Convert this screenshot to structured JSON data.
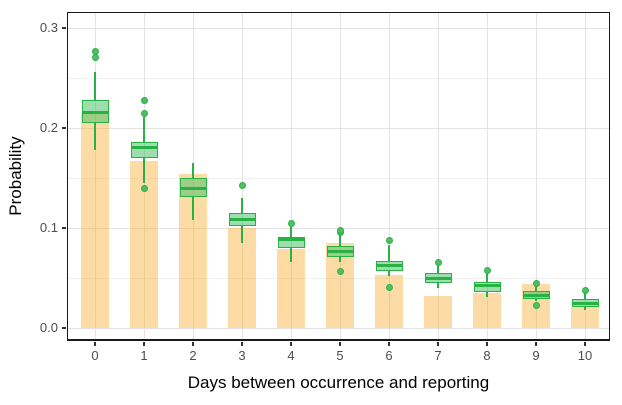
{
  "chart_data": {
    "type": "bar+boxplot",
    "title": "",
    "xlabel": "Days between occurrence and reporting",
    "ylabel": "Probability",
    "categories": [
      "0",
      "1",
      "2",
      "3",
      "4",
      "5",
      "6",
      "7",
      "8",
      "9",
      "10"
    ],
    "y_ticks": [
      {
        "v": 0.0,
        "label": "0.0"
      },
      {
        "v": 0.1,
        "label": "0.1"
      },
      {
        "v": 0.2,
        "label": "0.2"
      },
      {
        "v": 0.3,
        "label": "0.3"
      }
    ],
    "y_minor_gridlines": [
      0.05,
      0.15,
      0.25
    ],
    "ylim": [
      -0.013,
      0.316
    ],
    "grid": "on",
    "legend": "none",
    "bar_series": {
      "name": "bar-probability",
      "values": [
        0.215,
        0.167,
        0.154,
        0.1,
        0.079,
        0.085,
        0.053,
        0.032,
        0.035,
        0.044,
        0.021
      ]
    },
    "box_series": [
      {
        "x": "0",
        "whisker_low": 0.178,
        "q1": 0.205,
        "median": 0.216,
        "q3": 0.228,
        "whisker_high": 0.256,
        "outliers_high": [
          0.271,
          0.277
        ],
        "outliers_low": []
      },
      {
        "x": "1",
        "whisker_low": 0.145,
        "q1": 0.17,
        "median": 0.181,
        "q3": 0.186,
        "whisker_high": 0.211,
        "outliers_high": [
          0.215,
          0.228
        ],
        "outliers_low": [
          0.14
        ]
      },
      {
        "x": "2",
        "whisker_low": 0.108,
        "q1": 0.131,
        "median": 0.14,
        "q3": 0.15,
        "whisker_high": 0.165,
        "outliers_high": [],
        "outliers_low": []
      },
      {
        "x": "3",
        "whisker_low": 0.085,
        "q1": 0.102,
        "median": 0.109,
        "q3": 0.115,
        "whisker_high": 0.13,
        "outliers_high": [
          0.143
        ],
        "outliers_low": []
      },
      {
        "x": "4",
        "whisker_low": 0.066,
        "q1": 0.08,
        "median": 0.089,
        "q3": 0.091,
        "whisker_high": 0.101,
        "outliers_high": [
          0.105
        ],
        "outliers_low": []
      },
      {
        "x": "5",
        "whisker_low": 0.066,
        "q1": 0.071,
        "median": 0.077,
        "q3": 0.082,
        "whisker_high": 0.093,
        "outliers_high": [
          0.096,
          0.098
        ],
        "outliers_low": [
          0.057
        ]
      },
      {
        "x": "6",
        "whisker_low": 0.052,
        "q1": 0.057,
        "median": 0.063,
        "q3": 0.067,
        "whisker_high": 0.083,
        "outliers_high": [
          0.088
        ],
        "outliers_low": [
          0.041
        ]
      },
      {
        "x": "7",
        "whisker_low": 0.04,
        "q1": 0.045,
        "median": 0.05,
        "q3": 0.055,
        "whisker_high": 0.064,
        "outliers_high": [
          0.066
        ],
        "outliers_low": []
      },
      {
        "x": "8",
        "whisker_low": 0.031,
        "q1": 0.036,
        "median": 0.043,
        "q3": 0.046,
        "whisker_high": 0.055,
        "outliers_high": [
          0.058
        ],
        "outliers_low": []
      },
      {
        "x": "9",
        "whisker_low": 0.027,
        "q1": 0.029,
        "median": 0.033,
        "q3": 0.037,
        "whisker_high": 0.043,
        "outliers_high": [
          0.045
        ],
        "outliers_low": [
          0.023
        ]
      },
      {
        "x": "10",
        "whisker_low": 0.018,
        "q1": 0.021,
        "median": 0.025,
        "q3": 0.029,
        "whisker_high": 0.035,
        "outliers_high": [
          0.038
        ],
        "outliers_low": []
      }
    ],
    "colors": {
      "bar_fill": "rgba(250, 172, 48, 0.44)",
      "box_stroke": "#28B246",
      "box_fill": "rgba(77, 194, 108, 0.55)",
      "outlier_fill": "#53BD64",
      "grid_major": "#E3E3E3",
      "grid_minor": "#F1F1F1",
      "tick_label_color": "#4D4D4D",
      "axis_title_color": "#000000",
      "panel_border_color": "#1a1a1a"
    }
  }
}
